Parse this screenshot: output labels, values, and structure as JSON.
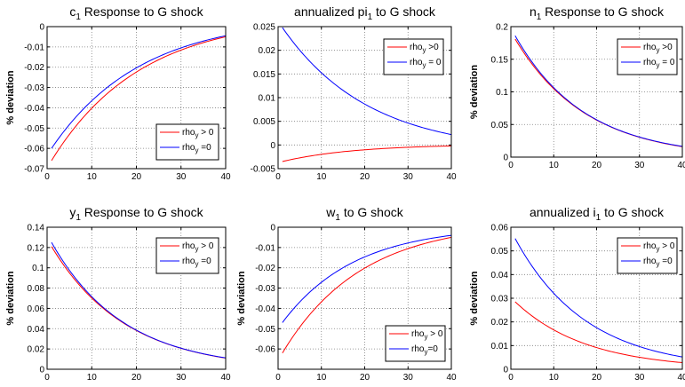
{
  "chart_data": [
    {
      "type": "line",
      "title": "c",
      "title_sub": "1",
      "title_rest": " Response to G shock",
      "ylabel": "% deviation",
      "xlim": [
        0,
        40
      ],
      "ylim": [
        -0.07,
        0
      ],
      "xticks": [
        0,
        10,
        20,
        30,
        40
      ],
      "yticks": [
        -0.07,
        -0.06,
        -0.05,
        -0.04,
        -0.03,
        -0.02,
        -0.01,
        0
      ],
      "ytick_labels": [
        "-0.07",
        "-0.06",
        "-0.05",
        "-0.04",
        "-0.03",
        "-0.02",
        "-0.01",
        "0"
      ],
      "grid": true,
      "legend_position": "lower-right",
      "series": [
        {
          "name": "rho",
          "name_sub": "y",
          "name_rest": " > 0",
          "color": "#ff0000",
          "x": [
            1,
            40
          ],
          "start": -0.066,
          "end": -0.005,
          "decay": 0.05
        },
        {
          "name": "rho",
          "name_sub": "y",
          "name_rest": " =0",
          "color": "#0000ff",
          "x": [
            1,
            40
          ],
          "start": -0.06,
          "end": -0.0045,
          "decay": 0.05
        }
      ]
    },
    {
      "type": "line",
      "title": "annualized pi",
      "title_sub": "1",
      "title_rest": " to G shock",
      "ylabel": "",
      "xlim": [
        0,
        40
      ],
      "ylim": [
        -0.005,
        0.025
      ],
      "xticks": [
        0,
        10,
        20,
        30,
        40
      ],
      "yticks": [
        -0.005,
        0,
        0.005,
        0.01,
        0.015,
        0.02,
        0.025
      ],
      "ytick_labels": [
        "-0.005",
        "0",
        "0.005",
        "0.01",
        "0.015",
        "0.02",
        "0.025"
      ],
      "grid": true,
      "legend_position": "upper-right",
      "series": [
        {
          "name": "rho",
          "name_sub": "y",
          "name_rest": " >0",
          "color": "#ff0000",
          "x": [
            1,
            40
          ],
          "start": -0.0035,
          "end": -0.0002,
          "decay": 0.06
        },
        {
          "name": "rho",
          "name_sub": "y",
          "name_rest": " = 0",
          "color": "#0000ff",
          "x": [
            1,
            40
          ],
          "start": 0.0248,
          "end": 0.0022,
          "decay": 0.05
        }
      ]
    },
    {
      "type": "line",
      "title": "n",
      "title_sub": "1",
      "title_rest": " Response to G shock",
      "ylabel": "% deviation",
      "xlim": [
        0,
        40
      ],
      "ylim": [
        0,
        0.2
      ],
      "xticks": [
        0,
        10,
        20,
        30,
        40
      ],
      "yticks": [
        0,
        0.05,
        0.1,
        0.15,
        0.2
      ],
      "ytick_labels": [
        "0",
        "0.05",
        "0.1",
        "0.15",
        "0.2"
      ],
      "grid": true,
      "legend_position": "upper-right",
      "series": [
        {
          "name": "rho",
          "name_sub": "y",
          "name_rest": " >0",
          "color": "#ff0000",
          "x": [
            1,
            40
          ],
          "start": 0.181,
          "end": 0.016,
          "decay": 0.06
        },
        {
          "name": "rho",
          "name_sub": "y",
          "name_rest": " = 0",
          "color": "#0000ff",
          "x": [
            1,
            40
          ],
          "start": 0.186,
          "end": 0.0165,
          "decay": 0.062
        }
      ]
    },
    {
      "type": "line",
      "title": "y",
      "title_sub": "1",
      "title_rest": " Response to G shock",
      "ylabel": "% deviation",
      "xlim": [
        0,
        40
      ],
      "ylim": [
        0,
        0.14
      ],
      "xticks": [
        0,
        10,
        20,
        30,
        40
      ],
      "yticks": [
        0,
        0.02,
        0.04,
        0.06,
        0.08,
        0.1,
        0.12,
        0.14
      ],
      "ytick_labels": [
        "0",
        "0.02",
        "0.04",
        "0.06",
        "0.08",
        "0.1",
        "0.12",
        "0.14"
      ],
      "grid": true,
      "legend_position": "upper-right",
      "series": [
        {
          "name": "rho",
          "name_sub": "y",
          "name_rest": " > 0",
          "color": "#ff0000",
          "x": [
            1,
            40
          ],
          "start": 0.121,
          "end": 0.011,
          "decay": 0.06
        },
        {
          "name": "rho",
          "name_sub": "y",
          "name_rest": " =0",
          "color": "#0000ff",
          "x": [
            1,
            40
          ],
          "start": 0.125,
          "end": 0.0112,
          "decay": 0.062
        }
      ]
    },
    {
      "type": "line",
      "title": "w",
      "title_sub": "1",
      "title_rest": " to  G shock",
      "ylabel": "% deviation",
      "xlim": [
        0,
        40
      ],
      "ylim": [
        -0.07,
        0
      ],
      "xticks": [
        0,
        10,
        20,
        30,
        40
      ],
      "yticks": [
        -0.07,
        -0.06,
        -0.05,
        -0.04,
        -0.03,
        -0.02,
        -0.01,
        0
      ],
      "ytick_labels": [
        "",
        "-0.06",
        "-0.05",
        "-0.04",
        "-0.03",
        "-0.02",
        "-0.01",
        "0"
      ],
      "grid": true,
      "legend_position": "lower-right",
      "series": [
        {
          "name": "rho",
          "name_sub": "y",
          "name_rest": " > 0",
          "color": "#ff0000",
          "x": [
            1,
            40
          ],
          "start": -0.062,
          "end": -0.005,
          "decay": 0.055
        },
        {
          "name": "rho",
          "name_sub": "y",
          "name_rest": "=0",
          "color": "#0000ff",
          "x": [
            1,
            40
          ],
          "start": -0.047,
          "end": -0.004,
          "decay": 0.06
        }
      ]
    },
    {
      "type": "line",
      "title": "annualized i",
      "title_sub": "1",
      "title_rest": " to G shock",
      "ylabel": "% deviation",
      "xlim": [
        0,
        40
      ],
      "ylim": [
        0,
        0.06
      ],
      "xticks": [
        0,
        10,
        20,
        30,
        40
      ],
      "yticks": [
        0,
        0.01,
        0.02,
        0.03,
        0.04,
        0.05,
        0.06
      ],
      "ytick_labels": [
        "0",
        "0.01",
        "0.02",
        "0.03",
        "0.04",
        "0.05",
        "0.06"
      ],
      "grid": true,
      "legend_position": "upper-right",
      "series": [
        {
          "name": "rho",
          "name_sub": "y",
          "name_rest": " > 0",
          "color": "#ff0000",
          "x": [
            1,
            40
          ],
          "start": 0.0285,
          "end": 0.0028,
          "decay": 0.06
        },
        {
          "name": "rho",
          "name_sub": "y",
          "name_rest": " =0",
          "color": "#0000ff",
          "x": [
            1,
            40
          ],
          "start": 0.0552,
          "end": 0.0052,
          "decay": 0.06
        }
      ]
    }
  ]
}
